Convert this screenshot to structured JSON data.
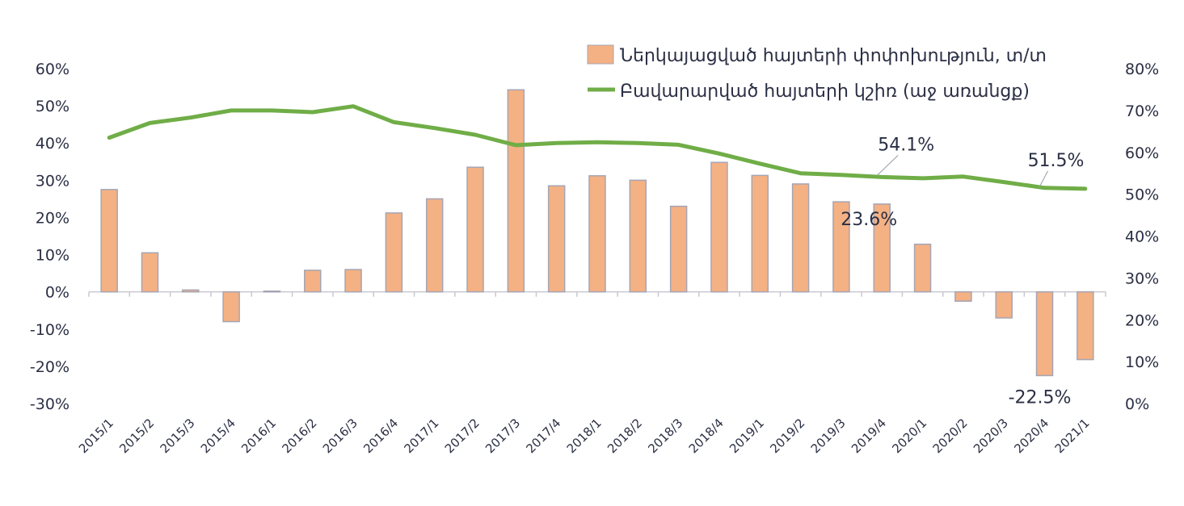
{
  "chart_data": {
    "type": "bar",
    "categories": [
      "2015/1",
      "2015/2",
      "2015/3",
      "2015/4",
      "2016/1",
      "2016/2",
      "2016/3",
      "2016/4",
      "2017/1",
      "2017/2",
      "2017/3",
      "2017/4",
      "2018/1",
      "2018/2",
      "2018/3",
      "2018/4",
      "2019/1",
      "2019/2",
      "2019/3",
      "2019/4",
      "2020/1",
      "2020/2",
      "2020/3",
      "2020/4",
      "2021/1"
    ],
    "series": [
      {
        "name": "Ներկայացված հայտերի փոփոխություն, տ/տ",
        "type": "bar",
        "axis": "left",
        "color": "#f4b183",
        "values": [
          27.5,
          10.5,
          0.5,
          -8.0,
          0.2,
          5.8,
          6.0,
          21.2,
          25.0,
          33.5,
          54.3,
          28.5,
          31.2,
          30.0,
          23.0,
          34.8,
          31.3,
          29.0,
          24.2,
          23.6,
          12.8,
          -2.5,
          -7.0,
          -22.5,
          -18.2
        ]
      },
      {
        "name": "Բավարարված հայտերի կշիռ (աջ առանցք)",
        "type": "line",
        "axis": "right",
        "color": "#70ad47",
        "values": [
          63.5,
          67.0,
          68.3,
          70.0,
          70.0,
          69.6,
          71.0,
          67.2,
          65.8,
          64.2,
          61.7,
          62.2,
          62.4,
          62.2,
          61.8,
          59.7,
          57.3,
          55.0,
          54.6,
          54.1,
          53.8,
          54.2,
          52.9,
          51.5,
          51.3
        ]
      }
    ],
    "y_left": {
      "min": -30,
      "max": 60,
      "step": 10,
      "ticks": [
        "-30%",
        "-20%",
        "-10%",
        "0%",
        "10%",
        "20%",
        "30%",
        "40%",
        "50%",
        "60%"
      ]
    },
    "y_right": {
      "min": 0,
      "max": 80,
      "step": 10,
      "ticks": [
        "0%",
        "10%",
        "20%",
        "30%",
        "40%",
        "50%",
        "60%",
        "70%",
        "80%"
      ]
    },
    "annotations": [
      {
        "text": "54.1%",
        "series": 1,
        "index": 19
      },
      {
        "text": "51.5%",
        "series": 1,
        "index": 23
      },
      {
        "text": "23.6%",
        "series": 0,
        "index": 19
      },
      {
        "text": "-22.5%",
        "series": 0,
        "index": 23
      }
    ],
    "legend": {
      "placement": "top-right",
      "items": [
        {
          "label": "Ներկայացված հայտերի փոփոխություն, տ/տ",
          "kind": "bar",
          "color": "#f4b183"
        },
        {
          "label": "Բավարարված հայտերի կշիռ (աջ առանցք)",
          "kind": "line",
          "color": "#70ad47"
        }
      ]
    },
    "grid": false,
    "colors": {
      "bar_fill": "#f4b183",
      "bar_stroke": "#a5a5b5",
      "line": "#70ad47",
      "axis": "#c8c8d0",
      "text": "#2b2f44"
    }
  }
}
